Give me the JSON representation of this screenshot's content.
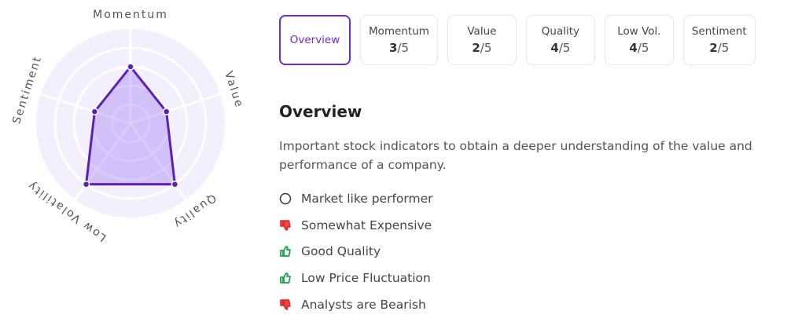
{
  "chart_data": {
    "type": "radar",
    "categories": [
      "Momentum",
      "Value",
      "Quality",
      "Low Volatility",
      "Sentiment"
    ],
    "values": [
      3,
      2,
      4,
      4,
      2
    ],
    "rlim": [
      0,
      5
    ],
    "rticks": [
      1,
      2,
      3,
      4,
      5
    ],
    "color": "#5b21b6",
    "fill": "rgba(139,92,246,0.32)",
    "background": "#f4effd"
  },
  "tabs": {
    "selected": "Overview",
    "items": [
      "Momentum",
      "Value",
      "Quality",
      "Low Vol.",
      "Sentiment"
    ],
    "score_suffix": "/5"
  },
  "overview": {
    "title": "Overview",
    "description": "Important stock indicators to obtain a deeper understanding of the value and performance of a company.",
    "indicators": [
      {
        "icon": "neutral",
        "text": "Market like performer"
      },
      {
        "icon": "down",
        "text": "Somewhat Expensive"
      },
      {
        "icon": "up",
        "text": "Good Quality"
      },
      {
        "icon": "up",
        "text": "Low Price Fluctuation"
      },
      {
        "icon": "down",
        "text": "Analysts are Bearish"
      }
    ]
  }
}
